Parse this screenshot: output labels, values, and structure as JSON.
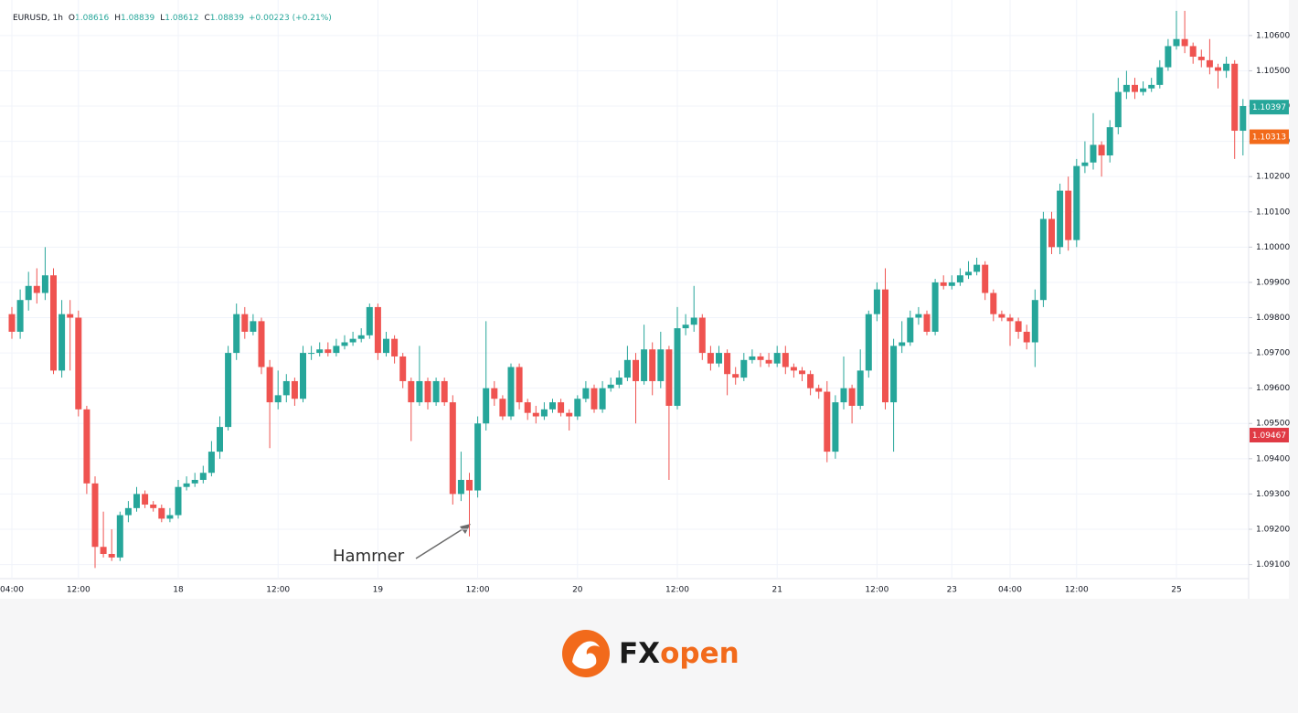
{
  "chart_data": {
    "type": "candlestick",
    "symbol": "EURUSD, 1h",
    "ohlc_legend": [
      {
        "key": "O",
        "value": "1.08616"
      },
      {
        "key": "H",
        "value": "1.08839"
      },
      {
        "key": "L",
        "value": "1.08612"
      },
      {
        "key": "C",
        "value": "1.08839"
      }
    ],
    "change": "+0.00223 (+0.21%)",
    "annotation": "Hammer",
    "up_color": "#26a69a",
    "down_color": "#ef5350",
    "grid": true,
    "categories": [
      "04:00",
      null,
      null,
      null,
      null,
      null,
      null,
      null,
      "12:00",
      null,
      null,
      null,
      null,
      null,
      null,
      null,
      null,
      null,
      null,
      null,
      "18",
      null,
      null,
      null,
      null,
      null,
      null,
      null,
      null,
      null,
      null,
      null,
      "12:00",
      null,
      null,
      null,
      null,
      null,
      null,
      null,
      null,
      null,
      null,
      null,
      "19",
      null,
      null,
      null,
      null,
      null,
      null,
      null,
      null,
      null,
      null,
      null,
      "12:00",
      null,
      null,
      null,
      null,
      null,
      null,
      null,
      null,
      null,
      null,
      null,
      "20",
      null,
      null,
      null,
      null,
      null,
      null,
      null,
      null,
      null,
      null,
      null,
      "12:00",
      null,
      null,
      null,
      null,
      null,
      null,
      null,
      null,
      null,
      null,
      null,
      "21",
      null,
      null,
      null,
      null,
      null,
      null,
      null,
      null,
      null,
      null,
      null,
      "12:00",
      null,
      null,
      null,
      null,
      null,
      null,
      null,
      null,
      "23",
      null,
      null,
      null,
      null,
      null,
      null,
      "04:00",
      null,
      null,
      null,
      null,
      null,
      null,
      null,
      "12:00",
      null,
      null,
      null,
      null,
      null,
      null,
      null,
      null,
      null,
      null,
      null,
      "25",
      null,
      null,
      null,
      null,
      null,
      null,
      null,
      null
    ],
    "open": [
      1.0981,
      1.0976,
      1.0985,
      1.0989,
      1.0987,
      1.0992,
      1.0965,
      1.0981,
      1.098,
      1.0954,
      1.0933,
      1.0915,
      1.0913,
      1.0912,
      1.0924,
      1.0926,
      1.093,
      1.0927,
      1.0926,
      1.0923,
      1.0924,
      1.0932,
      1.0933,
      1.0934,
      1.0936,
      1.0942,
      1.0949,
      1.097,
      1.0981,
      1.0976,
      1.0979,
      1.0966,
      1.0956,
      1.0958,
      1.0962,
      1.0957,
      1.097,
      1.097,
      1.0971,
      1.097,
      1.0972,
      1.0973,
      1.0974,
      1.0975,
      1.0983,
      1.097,
      1.0974,
      1.0969,
      1.0962,
      1.0956,
      1.0962,
      1.0956,
      1.0962,
      1.0956,
      1.093,
      1.0934,
      1.0931,
      1.095,
      1.096,
      1.0957,
      1.0952,
      1.0966,
      1.0956,
      1.0953,
      1.0952,
      1.0954,
      1.0956,
      1.0953,
      1.0952,
      1.0957,
      1.096,
      1.0954,
      1.096,
      1.0961,
      1.0963,
      1.0968,
      1.0962,
      1.0971,
      1.0962,
      1.0971,
      1.0955,
      1.0977,
      1.0978,
      1.098,
      1.097,
      1.0967,
      1.097,
      1.0964,
      1.0963,
      1.0968,
      1.0969,
      1.0968,
      1.0967,
      1.097,
      1.0966,
      1.0965,
      1.0964,
      1.096,
      1.0959,
      1.0942,
      1.0956,
      1.096,
      1.0955,
      1.0965,
      1.0981,
      1.0988,
      1.0956,
      1.0972,
      1.0973,
      1.098,
      1.0981,
      1.0976,
      1.099,
      1.0989,
      1.099,
      1.0992,
      1.0993,
      1.0995,
      1.0987,
      1.0981,
      1.098,
      1.0979,
      1.0976,
      1.0973,
      1.0985,
      1.1008,
      1.1,
      1.1016,
      1.1002,
      1.1023,
      1.1024,
      1.1029,
      1.1026,
      1.1034,
      1.1044,
      1.1046,
      1.1044,
      1.1045,
      1.1046,
      1.1051,
      1.1057,
      1.1059,
      1.1057,
      1.1054,
      1.1053,
      1.1051,
      1.105,
      1.1052,
      1.1033
    ],
    "high": [
      1.0983,
      1.0988,
      1.0993,
      1.0994,
      1.1,
      1.0994,
      1.0985,
      1.0985,
      1.0982,
      1.0955,
      1.0935,
      1.0925,
      1.092,
      1.0925,
      1.0928,
      1.0932,
      1.0931,
      1.0928,
      1.0927,
      1.0926,
      1.0934,
      1.0935,
      1.0936,
      1.0938,
      1.0945,
      1.0952,
      1.0972,
      1.0984,
      1.0983,
      1.0981,
      1.098,
      1.0968,
      1.0965,
      1.0964,
      1.0963,
      1.0972,
      1.0972,
      1.0973,
      1.0973,
      1.0974,
      1.0975,
      1.0976,
      1.0977,
      1.0984,
      1.0984,
      1.0976,
      1.0975,
      1.097,
      1.0963,
      1.0972,
      1.0963,
      1.0963,
      1.0963,
      1.0958,
      1.0942,
      1.0936,
      1.0952,
      1.0979,
      1.0962,
      1.0958,
      1.0967,
      1.0967,
      1.0957,
      1.0955,
      1.0956,
      1.0957,
      1.0957,
      1.0954,
      1.0958,
      1.0962,
      1.0961,
      1.0962,
      1.0963,
      1.0965,
      1.0972,
      1.097,
      1.0978,
      1.0973,
      1.0976,
      1.0972,
      1.0983,
      1.0981,
      1.0989,
      1.0981,
      1.0972,
      1.0972,
      1.0971,
      1.0966,
      1.097,
      1.0971,
      1.097,
      1.097,
      1.0972,
      1.0972,
      1.0967,
      1.0966,
      1.0965,
      1.0961,
      1.0962,
      1.0958,
      1.0969,
      1.0961,
      1.0971,
      1.0982,
      1.099,
      1.0994,
      1.0974,
      1.0979,
      1.0982,
      1.0983,
      1.0982,
      1.0991,
      1.0992,
      1.0992,
      1.0994,
      1.0996,
      1.0997,
      1.0996,
      1.0988,
      1.0982,
      1.0981,
      1.098,
      1.0978,
      1.0988,
      1.101,
      1.101,
      1.1018,
      1.102,
      1.1025,
      1.103,
      1.1038,
      1.103,
      1.1036,
      1.1048,
      1.105,
      1.1048,
      1.1047,
      1.1048,
      1.1053,
      1.1059,
      1.1067,
      1.1067,
      1.1058,
      1.1056,
      1.1059,
      1.1052,
      1.1054,
      1.1053,
      1.1042
    ],
    "low": [
      1.0974,
      1.0974,
      1.0982,
      1.0984,
      1.0985,
      1.0964,
      1.0963,
      1.0965,
      1.0952,
      1.093,
      1.0909,
      1.0912,
      1.0911,
      1.0911,
      1.0922,
      1.0925,
      1.0926,
      1.0925,
      1.0922,
      1.0922,
      1.0923,
      1.0931,
      1.0932,
      1.0933,
      1.0935,
      1.094,
      1.0948,
      1.0968,
      1.0974,
      1.0975,
      1.0964,
      1.0943,
      1.0954,
      1.0956,
      1.0955,
      1.0956,
      1.0968,
      1.0969,
      1.0969,
      1.0969,
      1.0971,
      1.0972,
      1.0973,
      1.0974,
      1.0968,
      1.0969,
      1.0967,
      1.096,
      1.0945,
      1.0955,
      1.0954,
      1.0955,
      1.0955,
      1.0927,
      1.0928,
      1.0918,
      1.0929,
      1.0948,
      1.0955,
      1.0951,
      1.0951,
      1.0954,
      1.0951,
      1.095,
      1.0951,
      1.0953,
      1.0952,
      1.0948,
      1.0951,
      1.0956,
      1.0953,
      1.0953,
      1.0959,
      1.096,
      1.0962,
      1.095,
      1.0961,
      1.0958,
      1.096,
      1.0934,
      1.0954,
      1.0975,
      1.0976,
      1.0968,
      1.0965,
      1.0966,
      1.0958,
      1.0961,
      1.0962,
      1.0967,
      1.0966,
      1.0966,
      1.0966,
      1.0964,
      1.0963,
      1.0962,
      1.0958,
      1.0957,
      1.0939,
      1.094,
      1.0954,
      1.095,
      1.0954,
      1.0963,
      1.0979,
      1.0954,
      1.0942,
      1.097,
      1.0972,
      1.0978,
      1.0975,
      1.0975,
      1.0988,
      1.0988,
      1.0989,
      1.0991,
      1.0992,
      1.0985,
      1.0979,
      1.0979,
      1.0972,
      1.0974,
      1.0971,
      1.0966,
      1.0983,
      1.0998,
      1.0998,
      1.0999,
      1.1,
      1.1021,
      1.1022,
      1.102,
      1.1024,
      1.1032,
      1.1042,
      1.1042,
      1.1043,
      1.1044,
      1.1045,
      1.105,
      1.1056,
      1.1055,
      1.1052,
      1.1051,
      1.1049,
      1.1045,
      1.1048,
      1.1025,
      1.1026
    ],
    "close": [
      1.0976,
      1.0985,
      1.0989,
      1.0987,
      1.0992,
      1.0965,
      1.0981,
      1.098,
      1.0954,
      1.0933,
      1.0915,
      1.0913,
      1.0912,
      1.0924,
      1.0926,
      1.093,
      1.0927,
      1.0926,
      1.0923,
      1.0924,
      1.0932,
      1.0933,
      1.0934,
      1.0936,
      1.0942,
      1.0949,
      1.097,
      1.0981,
      1.0976,
      1.0979,
      1.0966,
      1.0956,
      1.0958,
      1.0962,
      1.0957,
      1.097,
      1.097,
      1.0971,
      1.097,
      1.0972,
      1.0973,
      1.0974,
      1.0975,
      1.0983,
      1.097,
      1.0974,
      1.0969,
      1.0962,
      1.0956,
      1.0962,
      1.0956,
      1.0962,
      1.0956,
      1.093,
      1.0934,
      1.0931,
      1.095,
      1.096,
      1.0957,
      1.0952,
      1.0966,
      1.0956,
      1.0953,
      1.0952,
      1.0954,
      1.0956,
      1.0953,
      1.0952,
      1.0957,
      1.096,
      1.0954,
      1.096,
      1.0961,
      1.0963,
      1.0968,
      1.0962,
      1.0971,
      1.0962,
      1.0971,
      1.0955,
      1.0977,
      1.0978,
      1.098,
      1.097,
      1.0967,
      1.097,
      1.0964,
      1.0963,
      1.0968,
      1.0969,
      1.0968,
      1.0967,
      1.097,
      1.0966,
      1.0965,
      1.0964,
      1.096,
      1.0959,
      1.0942,
      1.0956,
      1.096,
      1.0955,
      1.0965,
      1.0981,
      1.0988,
      1.0956,
      1.0972,
      1.0973,
      1.098,
      1.0981,
      1.0976,
      1.099,
      1.0989,
      1.099,
      1.0992,
      1.0993,
      1.0995,
      1.0987,
      1.0981,
      1.098,
      1.0979,
      1.0976,
      1.0973,
      1.0985,
      1.1008,
      1.1,
      1.1016,
      1.1002,
      1.1023,
      1.1024,
      1.1029,
      1.1026,
      1.1034,
      1.1044,
      1.1046,
      1.1044,
      1.1045,
      1.1046,
      1.1051,
      1.1057,
      1.1059,
      1.1057,
      1.1054,
      1.1053,
      1.1051,
      1.105,
      1.1052,
      1.1033,
      1.104
    ],
    "ylim": [
      1.0906,
      1.1068
    ],
    "yticks": [
      {
        "value": 1.091,
        "label": "1.09100"
      },
      {
        "value": 1.092,
        "label": "1.09200"
      },
      {
        "value": 1.093,
        "label": "1.09300"
      },
      {
        "value": 1.094,
        "label": "1.09400"
      },
      {
        "value": 1.095,
        "label": "1.09500"
      },
      {
        "value": 1.096,
        "label": "1.09600"
      },
      {
        "value": 1.097,
        "label": "1.09700"
      },
      {
        "value": 1.098,
        "label": "1.09800"
      },
      {
        "value": 1.099,
        "label": "1.09900"
      },
      {
        "value": 1.1,
        "label": "1.10000"
      },
      {
        "value": 1.101,
        "label": "1.10100"
      },
      {
        "value": 1.102,
        "label": "1.10200"
      },
      {
        "value": 1.103,
        "label": "1.10300"
      },
      {
        "value": 1.104,
        "label": "1.10400"
      },
      {
        "value": 1.105,
        "label": "1.10500"
      },
      {
        "value": 1.106,
        "label": "1.10600"
      }
    ],
    "price_tags": [
      {
        "value": 1.10397,
        "color": "#26a69a"
      },
      {
        "value": 1.10313,
        "color": "#f26a1b"
      },
      {
        "value": 1.09467,
        "color": "#e03a45"
      }
    ]
  },
  "footer": {
    "brand_prefix": "FX",
    "brand_suffix": "open"
  }
}
